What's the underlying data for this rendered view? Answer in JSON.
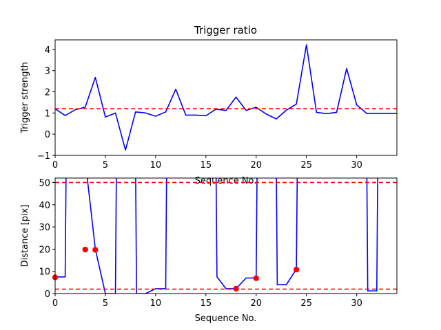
{
  "chart_data": [
    {
      "type": "line",
      "title": "Trigger ratio",
      "xlabel": "Sequence No.",
      "ylabel": "Trigger strength",
      "xlim": [
        0,
        34
      ],
      "ylim": [
        -1,
        4.45
      ],
      "xticks": [
        0,
        5,
        10,
        15,
        20,
        25,
        30
      ],
      "yticks": [
        -1,
        0,
        1,
        2,
        3,
        4
      ],
      "grid": false,
      "colors": {
        "line": "#0000ff",
        "threshold": "#ff0000"
      },
      "x": [
        0,
        1,
        2,
        3,
        4,
        5,
        6,
        7,
        8,
        9,
        10,
        11,
        12,
        13,
        14,
        15,
        16,
        17,
        18,
        19,
        20,
        21,
        22,
        23,
        24,
        25,
        26,
        27,
        28,
        29,
        30,
        31,
        32,
        33,
        34
      ],
      "series": [
        {
          "values": [
            1.2,
            0.88,
            1.15,
            1.28,
            2.68,
            0.81,
            1.0,
            -0.75,
            1.05,
            1.0,
            0.85,
            1.05,
            2.12,
            0.9,
            0.9,
            0.87,
            1.18,
            1.12,
            1.75,
            1.12,
            1.27,
            0.95,
            0.72,
            1.13,
            1.42,
            4.22,
            1.03,
            0.97,
            1.03,
            3.1,
            1.38,
            0.98,
            0.98,
            0.98,
            0.98
          ]
        }
      ],
      "hlines": [
        {
          "y": 1.2,
          "style": "dashed"
        }
      ]
    },
    {
      "type": "line",
      "title": "",
      "xlabel": "Sequence No.",
      "ylabel": "Distance [pix]",
      "xlim": [
        0,
        34
      ],
      "ylim": [
        0,
        52
      ],
      "xticks": [
        0,
        5,
        10,
        15,
        20,
        25,
        30
      ],
      "yticks": [
        0,
        10,
        20,
        30,
        40,
        50
      ],
      "grid": false,
      "colors": {
        "line": "#0000ff",
        "threshold": "#ff0000",
        "marker": "#ff0000"
      },
      "x": [
        0,
        1,
        1.1,
        3,
        4,
        5,
        6,
        6.1,
        8,
        8.1,
        9,
        10,
        11,
        11.1,
        16,
        16.1,
        17,
        18,
        19,
        20,
        20.1,
        22,
        22.1,
        23,
        24,
        24.1,
        31,
        31.1,
        32,
        32.1
      ],
      "series": [
        {
          "values": [
            7.5,
            7.5,
            60,
            60,
            20,
            0,
            0,
            60,
            60,
            0,
            0,
            2.2,
            2.2,
            60,
            60,
            7.5,
            2.2,
            2.2,
            7,
            7,
            60,
            60,
            4,
            4,
            11,
            60,
            60,
            1.2,
            1.2,
            60
          ]
        }
      ],
      "markers": {
        "x": [
          0,
          3,
          4,
          18,
          20,
          24
        ],
        "y": [
          7.3,
          19.8,
          19.7,
          2.2,
          6.9,
          10.8
        ]
      },
      "hlines": [
        {
          "y": 50,
          "style": "dashed"
        },
        {
          "y": 2,
          "style": "dashed"
        }
      ]
    }
  ]
}
